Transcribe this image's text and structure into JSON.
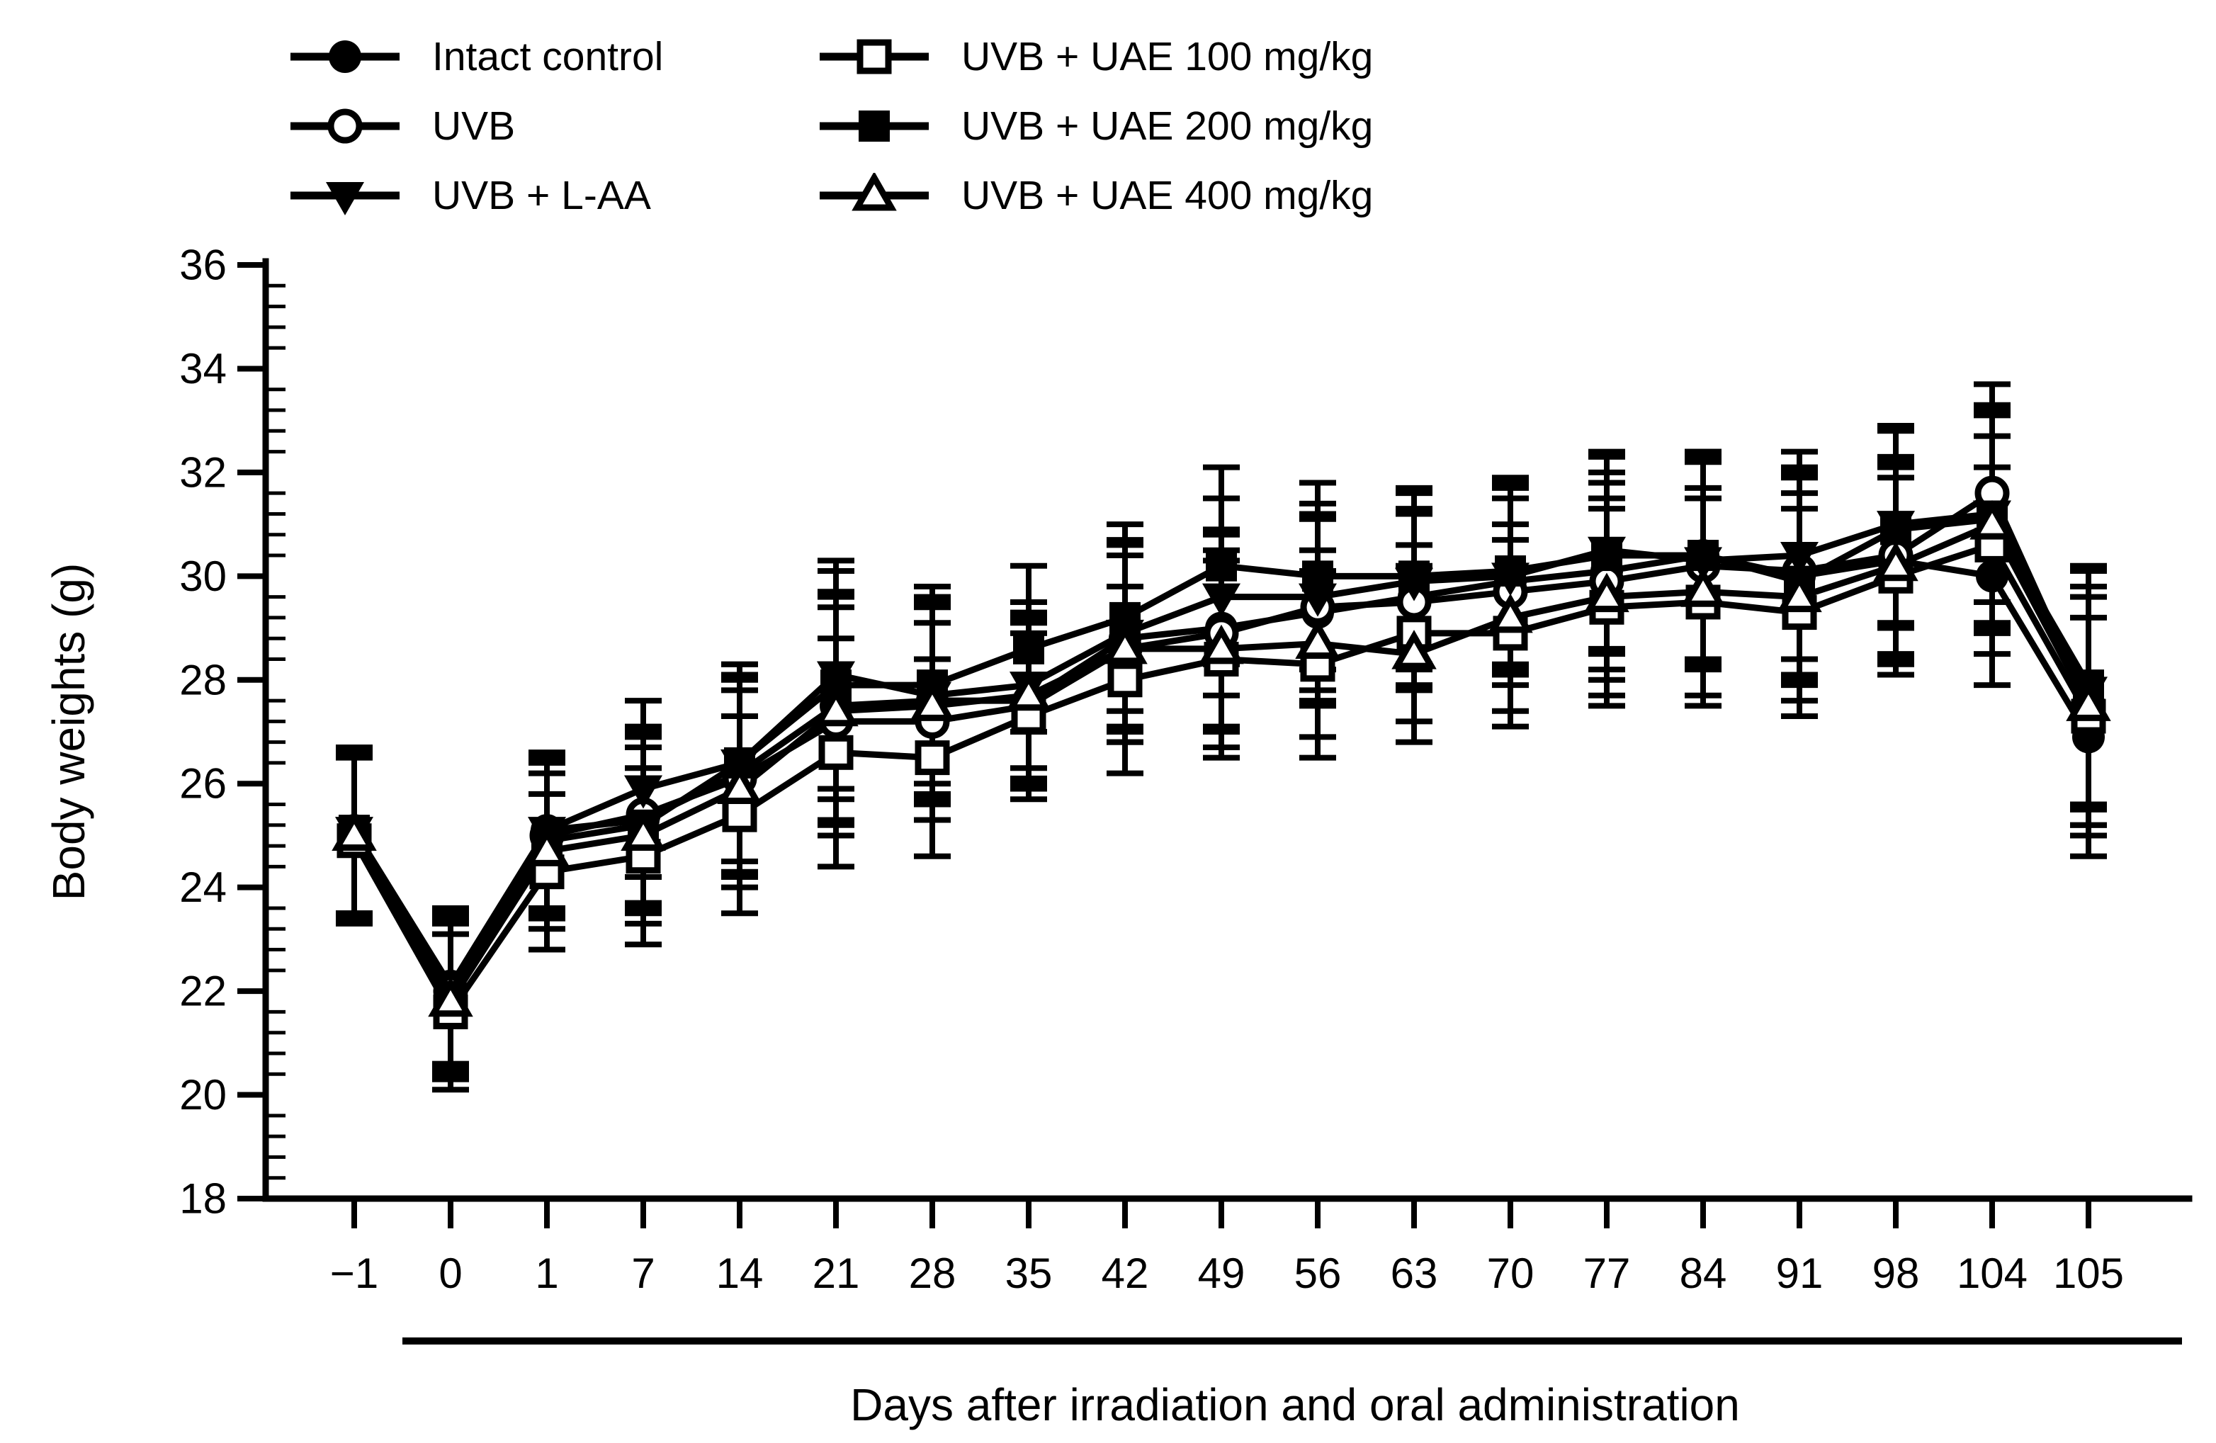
{
  "figure": {
    "background": "#ffffff",
    "ink_color": "#000000"
  },
  "chart_data": {
    "type": "line",
    "title": "",
    "xlabel": "Days after irradiation and oral administration",
    "ylabel": "Body weights (g)",
    "ylim": [
      18,
      36
    ],
    "ytick_step": 2,
    "yminor_step": 0.4,
    "yticks": [
      "18",
      "20",
      "22",
      "24",
      "26",
      "28",
      "30",
      "32",
      "34",
      "36"
    ],
    "grid": false,
    "legend_position": "top",
    "categories": [
      "−1",
      "0",
      "1",
      "7",
      "14",
      "21",
      "28",
      "35",
      "42",
      "49",
      "56",
      "63",
      "70",
      "77",
      "84",
      "91",
      "98",
      "104",
      "105"
    ],
    "series": [
      {
        "name": "Intact control",
        "marker": "circle-filled",
        "values": [
          25.1,
          22.1,
          25.1,
          25.3,
          26.2,
          27.5,
          27.6,
          27.6,
          28.8,
          29.0,
          29.3,
          29.6,
          29.9,
          30.1,
          30.4,
          30.0,
          30.3,
          30.0,
          26.9
        ]
      },
      {
        "name": "UVB",
        "marker": "circle-open",
        "values": [
          25.0,
          22.0,
          25.0,
          25.4,
          26.1,
          27.2,
          27.2,
          27.5,
          28.6,
          28.9,
          29.4,
          29.5,
          29.7,
          29.9,
          30.2,
          30.1,
          30.4,
          31.6,
          27.5
        ]
      },
      {
        "name": "UVB + L-AA",
        "marker": "triangle-down-filled",
        "values": [
          25.1,
          21.9,
          25.1,
          25.9,
          26.4,
          28.1,
          27.7,
          27.9,
          28.9,
          29.6,
          29.6,
          29.9,
          30.0,
          30.5,
          30.3,
          30.4,
          31.0,
          31.2,
          27.8
        ]
      },
      {
        "name": "UVB + UAE 100 mg/kg",
        "marker": "square-open",
        "values": [
          24.9,
          21.6,
          24.3,
          24.6,
          25.4,
          26.6,
          26.5,
          27.3,
          28.0,
          28.4,
          28.3,
          28.9,
          28.9,
          29.4,
          29.5,
          29.3,
          30.0,
          30.6,
          27.3
        ]
      },
      {
        "name": "UVB + UAE 200 mg/kg",
        "marker": "square-filled",
        "values": [
          25.1,
          21.9,
          24.9,
          25.2,
          26.4,
          27.9,
          27.9,
          28.6,
          29.2,
          30.2,
          30.0,
          30.0,
          30.1,
          30.4,
          30.4,
          29.9,
          30.9,
          31.1,
          27.9
        ]
      },
      {
        "name": "UVB + UAE 400 mg/kg",
        "marker": "triangle-up-open",
        "values": [
          25.0,
          21.8,
          24.7,
          25.0,
          25.9,
          27.4,
          27.5,
          27.7,
          28.6,
          28.6,
          28.7,
          28.5,
          29.2,
          29.6,
          29.7,
          29.6,
          30.2,
          31.0,
          27.5
        ]
      }
    ],
    "errors": [
      1.6,
      1.5,
      1.5,
      1.7,
      1.9,
      2.2,
      1.9,
      1.6,
      1.8,
      1.9,
      1.8,
      1.7,
      1.8,
      1.9,
      2.0,
      2.0,
      1.9,
      2.1,
      2.3
    ],
    "administration_underline": {
      "from_index": 1,
      "to_index": 18
    }
  }
}
